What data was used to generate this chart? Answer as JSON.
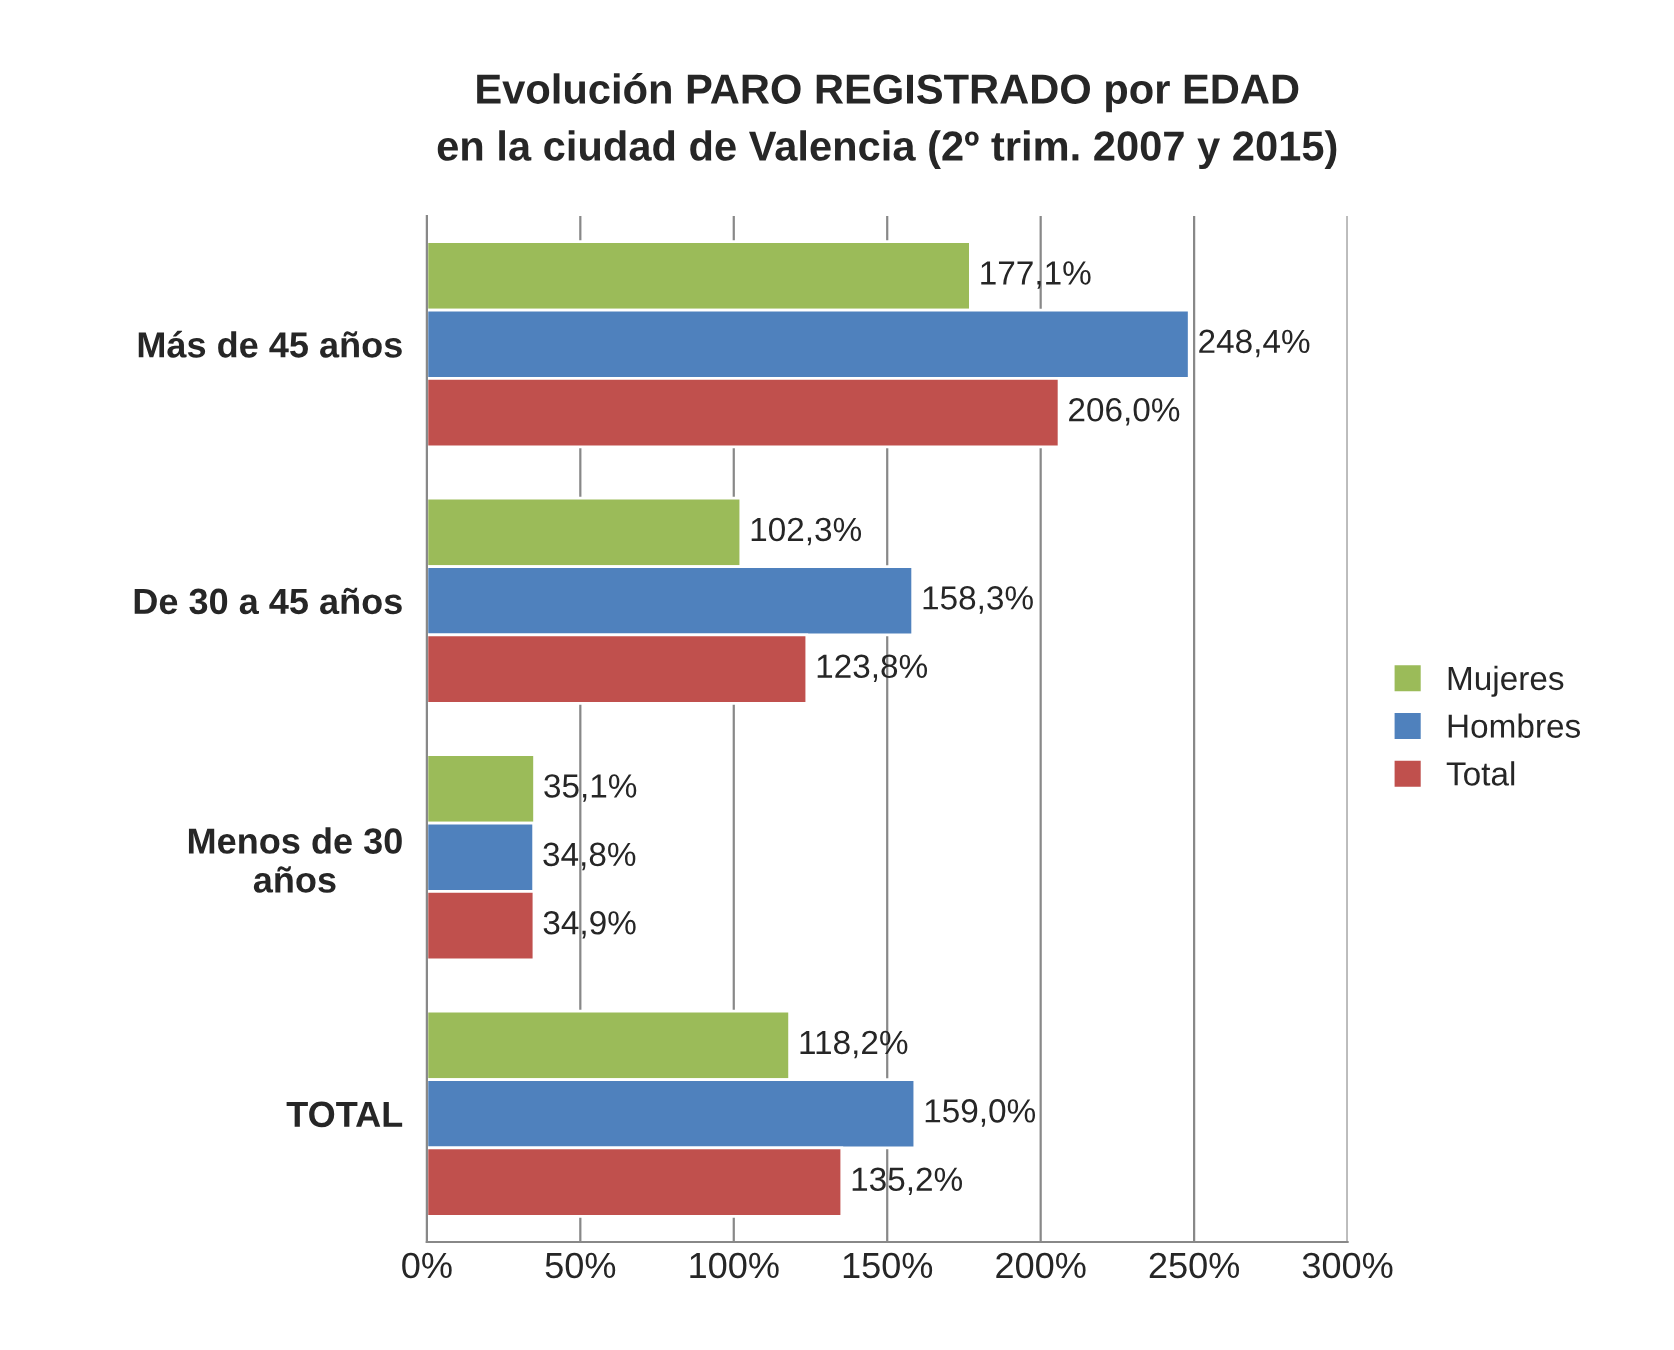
{
  "chart_data": {
    "type": "bar",
    "orientation": "horizontal",
    "title": "Evolución PARO REGISTRADO por EDAD\nen la ciudad de Valencia (2º trim. 2007 y 2015)",
    "categories": [
      "Más de 45 años",
      "De 30 a 45 años",
      "Menos de 30\naños",
      "TOTAL"
    ],
    "series": [
      {
        "name": "Mujeres",
        "color": "#9bbb59",
        "values": [
          177.1,
          102.3,
          35.1,
          118.2
        ],
        "value_labels": [
          "177,1%",
          "102,3%",
          "35,1%",
          "118,2%"
        ]
      },
      {
        "name": "Hombres",
        "color": "#4f81bd",
        "values": [
          248.4,
          158.3,
          34.8,
          159.0
        ],
        "value_labels": [
          "248,4%",
          "158,3%",
          "34,8%",
          "159,0%"
        ]
      },
      {
        "name": "Total",
        "color": "#c0504d",
        "values": [
          206.0,
          123.8,
          34.9,
          135.2
        ],
        "value_labels": [
          "206,0%",
          "123,8%",
          "34,9%",
          "135,2%"
        ]
      }
    ],
    "xlim": [
      0,
      300
    ],
    "xticks": [
      {
        "value": 0,
        "label": "0%"
      },
      {
        "value": 50,
        "label": "50%"
      },
      {
        "value": 100,
        "label": "100%"
      },
      {
        "value": 150,
        "label": "150%"
      },
      {
        "value": 200,
        "label": "200%"
      },
      {
        "value": 250,
        "label": "250%"
      },
      {
        "value": 300,
        "label": "300%"
      }
    ],
    "grid": "x",
    "legend": "right"
  }
}
